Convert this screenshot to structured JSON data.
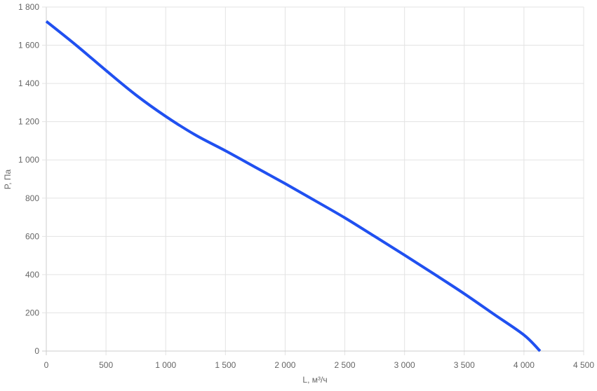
{
  "chart_data": {
    "type": "line",
    "title": "",
    "xlabel": "L, м³/ч",
    "ylabel": "P, Па",
    "xlim": [
      0,
      4500
    ],
    "ylim": [
      0,
      1800
    ],
    "x_ticks": [
      0,
      500,
      1000,
      1500,
      2000,
      2500,
      3000,
      3500,
      4000,
      4500
    ],
    "x_tick_labels": [
      "0",
      "500",
      "1 000",
      "1 500",
      "2 000",
      "2 500",
      "3 000",
      "3 500",
      "4 000",
      "4 500"
    ],
    "y_ticks": [
      0,
      200,
      400,
      600,
      800,
      1000,
      1200,
      1400,
      1600,
      1800
    ],
    "y_tick_labels": [
      "0",
      "200",
      "400",
      "600",
      "800",
      "1 000",
      "1 200",
      "1 400",
      "1 600",
      "1 800"
    ],
    "grid": true,
    "legend": "none",
    "series": [
      {
        "color": "#2050f0",
        "x": [
          0,
          250,
          500,
          750,
          1000,
          1250,
          1500,
          1750,
          2000,
          2250,
          2500,
          2750,
          3000,
          3250,
          3500,
          3750,
          4000,
          4135
        ],
        "y": [
          1725,
          1600,
          1468,
          1340,
          1228,
          1130,
          1048,
          962,
          876,
          787,
          697,
          600,
          502,
          402,
          300,
          192,
          84,
          0
        ]
      }
    ]
  }
}
